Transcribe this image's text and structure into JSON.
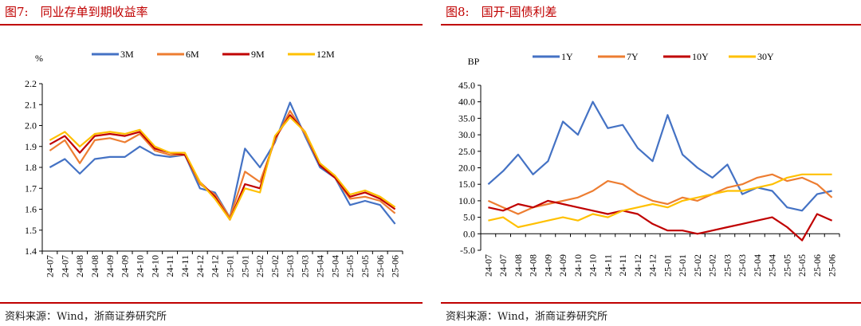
{
  "figures": [
    {
      "title": "图7:　同业存单到期收益率",
      "source": "资料来源：Wind，浙商证券研究所"
    },
    {
      "title": "图8:　国开-国债利差",
      "source": "资料来源：Wind，浙商证券研究所"
    }
  ],
  "chart_data": [
    {
      "type": "line",
      "title": "同业存单到期收益率",
      "ylabel": "%",
      "ylim": [
        1.4,
        2.2
      ],
      "yticks": [
        "1.4",
        "1.5",
        "1.6",
        "1.7",
        "1.8",
        "1.9",
        "2.0",
        "2.1",
        "2.2"
      ],
      "xticks": [
        "24-07",
        "24-07",
        "24-08",
        "24-08",
        "24-09",
        "24-09",
        "24-10",
        "24-10",
        "24-11",
        "24-11",
        "24-12",
        "24-12",
        "25-01",
        "25-01",
        "25-02",
        "25-02",
        "25-03",
        "25-03",
        "25-04",
        "25-04",
        "25-05",
        "25-05",
        "25-06",
        "25-06"
      ],
      "grid": false,
      "legend": "top",
      "series": [
        {
          "name": "3M",
          "color": "#4472c4",
          "values": [
            1.8,
            1.84,
            1.77,
            1.84,
            1.85,
            1.85,
            1.9,
            1.86,
            1.85,
            1.86,
            1.7,
            1.68,
            1.56,
            1.89,
            1.8,
            1.92,
            2.11,
            1.95,
            1.8,
            1.75,
            1.62,
            1.64,
            1.62,
            1.53
          ]
        },
        {
          "name": "6M",
          "color": "#ed7d31",
          "values": [
            1.88,
            1.93,
            1.82,
            1.93,
            1.94,
            1.92,
            1.96,
            1.88,
            1.86,
            1.86,
            1.72,
            1.67,
            1.56,
            1.78,
            1.73,
            1.93,
            2.07,
            1.96,
            1.81,
            1.75,
            1.65,
            1.66,
            1.64,
            1.58
          ]
        },
        {
          "name": "9M",
          "color": "#c00000",
          "values": [
            1.91,
            1.95,
            1.87,
            1.95,
            1.96,
            1.95,
            1.97,
            1.89,
            1.87,
            1.86,
            1.73,
            1.66,
            1.55,
            1.72,
            1.7,
            1.94,
            2.05,
            1.97,
            1.81,
            1.75,
            1.66,
            1.68,
            1.65,
            1.6
          ]
        },
        {
          "name": "12M",
          "color": "#ffc000",
          "values": [
            1.93,
            1.97,
            1.9,
            1.96,
            1.97,
            1.96,
            1.98,
            1.9,
            1.87,
            1.87,
            1.73,
            1.65,
            1.55,
            1.7,
            1.68,
            1.95,
            2.04,
            1.97,
            1.82,
            1.76,
            1.67,
            1.69,
            1.66,
            1.61
          ]
        }
      ]
    },
    {
      "type": "line",
      "title": "国开-国债利差",
      "ylabel": "BP",
      "ylim": [
        -5,
        45
      ],
      "yticks": [
        "-5.0",
        "0.0",
        "5.0",
        "10.0",
        "15.0",
        "20.0",
        "25.0",
        "30.0",
        "35.0",
        "40.0",
        "45.0"
      ],
      "xticks": [
        "24-07",
        "24-07",
        "24-08",
        "24-08",
        "24-09",
        "24-09",
        "24-10",
        "24-10",
        "24-11",
        "24-11",
        "24-12",
        "24-12",
        "25-01",
        "25-01",
        "25-02",
        "25-02",
        "25-03",
        "25-03",
        "25-04",
        "25-04",
        "25-05",
        "25-05",
        "25-06",
        "25-06"
      ],
      "grid": false,
      "legend": "top",
      "series": [
        {
          "name": "1Y",
          "color": "#4472c4",
          "values": [
            15,
            19,
            24,
            18,
            22,
            34,
            30,
            40,
            32,
            33,
            26,
            22,
            36,
            24,
            20,
            17,
            21,
            12,
            14,
            13,
            8,
            7,
            12,
            13
          ]
        },
        {
          "name": "7Y",
          "color": "#ed7d31",
          "values": [
            10,
            8,
            6,
            8,
            9,
            10,
            11,
            13,
            16,
            15,
            12,
            10,
            9,
            11,
            10,
            12,
            14,
            15,
            17,
            18,
            16,
            17,
            15,
            11
          ]
        },
        {
          "name": "10Y",
          "color": "#c00000",
          "values": [
            8,
            7,
            9,
            8,
            10,
            9,
            8,
            7,
            6,
            7,
            6,
            3,
            1,
            1,
            0,
            1,
            2,
            3,
            4,
            5,
            2,
            -2,
            6,
            4
          ]
        },
        {
          "name": "30Y",
          "color": "#ffc000",
          "values": [
            4,
            5,
            2,
            3,
            4,
            5,
            4,
            6,
            5,
            7,
            8,
            9,
            8,
            10,
            11,
            12,
            13,
            13,
            14,
            15,
            17,
            18,
            18,
            18
          ]
        }
      ]
    }
  ]
}
